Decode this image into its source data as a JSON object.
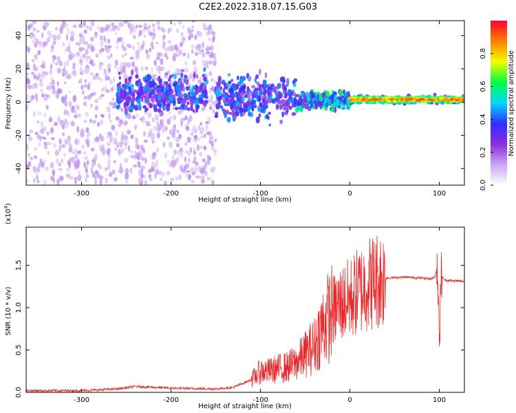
{
  "title": "C2E2.2022.318.07.15.G03",
  "chart_data": [
    {
      "type": "heatmap",
      "xlabel": "Height of straight line (km)",
      "ylabel": "Frequency (Hz)",
      "xlim": [
        -362,
        128
      ],
      "ylim": [
        -50,
        49
      ],
      "xticks": [
        -300,
        -200,
        -100,
        0,
        100
      ],
      "yticks": [
        -40,
        -20,
        0,
        20,
        40
      ],
      "colorbar": {
        "label": "Normalized spectral amplitude",
        "range": [
          0.0,
          1.0
        ],
        "ticks": [
          0.0,
          0.2,
          0.4,
          0.6,
          0.8
        ],
        "colors": [
          "#ffffff",
          "#c9a6f2",
          "#8a2be2",
          "#3030ff",
          "#00d8ff",
          "#00ff40",
          "#f0ff00",
          "#ff8000",
          "#ff0030"
        ]
      },
      "regions": [
        {
          "x_from": -362,
          "x_to": -150,
          "freq_center": 0,
          "freq_spread": 49,
          "amplitude": 0.12
        },
        {
          "x_from": -260,
          "x_to": -160,
          "freq_center": 5,
          "freq_spread": 10,
          "amplitude": 0.35
        },
        {
          "x_from": -150,
          "x_to": -60,
          "freq_center": 3,
          "freq_spread": 12,
          "amplitude": 0.35
        },
        {
          "x_from": -60,
          "x_to": 0,
          "freq_center": 1,
          "freq_spread": 5,
          "amplitude": 0.45
        },
        {
          "x_from": 0,
          "x_to": 128,
          "freq_center": 1.5,
          "freq_spread": 2,
          "amplitude": 0.95
        }
      ]
    },
    {
      "type": "line",
      "xlabel": "Height of straight line (km)",
      "ylabel": "SNR (10 * v/v)",
      "y_multiplier": "(x10",
      "y_multiplier_exp": "4",
      "y_multiplier_close": ")",
      "xlim": [
        -362,
        128
      ],
      "ylim": [
        0.0,
        1.95
      ],
      "xticks": [
        -300,
        -200,
        -100,
        0,
        100
      ],
      "yticks": [
        0.0,
        0.5,
        1.0,
        1.5
      ],
      "ytick_labels": [
        "0.0",
        "0.5",
        "1.0",
        "1.5"
      ],
      "color": "#e8282b",
      "envelope": {
        "x": [
          -362,
          -300,
          -260,
          -240,
          -200,
          -150,
          -130,
          -110,
          -100,
          -90,
          -80,
          -70,
          -60,
          -50,
          -40,
          -30,
          -20,
          -10,
          0,
          10,
          20,
          30,
          40,
          60,
          80,
          90,
          95,
          98,
          100,
          102,
          105,
          110,
          128
        ],
        "y": [
          0.02,
          0.02,
          0.04,
          0.07,
          0.05,
          0.04,
          0.06,
          0.15,
          0.25,
          0.25,
          0.28,
          0.3,
          0.35,
          0.45,
          0.55,
          0.8,
          0.95,
          1.05,
          1.1,
          1.2,
          1.28,
          1.33,
          1.35,
          1.36,
          1.35,
          1.34,
          1.36,
          1.5,
          0.6,
          1.4,
          1.33,
          1.32,
          1.31
        ]
      }
    }
  ]
}
